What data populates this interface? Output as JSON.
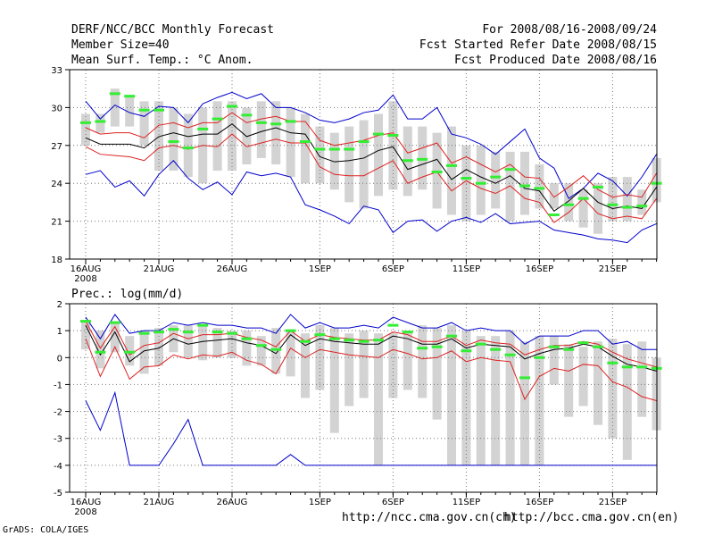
{
  "header": {
    "title": "DERF/NCC/BCC Monthly Forecast",
    "member_size": "Member Size=40",
    "variable": "Mean Surf. Temp.: °C Anom.",
    "period": "For 2008/08/16-2008/09/24",
    "started": "Fcst Started Refer Date 2008/08/15",
    "produced": "Fcst Produced Date 2008/08/16"
  },
  "footer": {
    "grads": "GrADS: COLA/IGES",
    "url_ncc": "http://ncc.cma.gov.cn(ch)",
    "url_bcc": "http://bcc.cma.gov.cn(en)"
  },
  "colors": {
    "box": "#d3d3d3",
    "member": "#33ee33",
    "mean": "#000000",
    "spread": "#dd2222",
    "extreme": "#0000cc",
    "grid": "#777777"
  },
  "chart_data": [
    {
      "type": "line",
      "title": "Mean Surf. Temp.: °C Anom.",
      "x_ticks": [
        "16AUG",
        "21AUG",
        "26AUG",
        "1SEP",
        "6SEP",
        "11SEP",
        "16SEP",
        "21SEP"
      ],
      "x_tick_days": [
        0,
        5,
        10,
        16,
        21,
        26,
        31,
        36
      ],
      "x_sublabel": "2008",
      "ylim": [
        18,
        33
      ],
      "y_ticks": [
        18,
        21,
        24,
        27,
        30,
        33
      ],
      "days": 40,
      "box_low": [
        27.0,
        28.0,
        28.5,
        28.5,
        27.0,
        25.0,
        25.0,
        24.5,
        24.0,
        25.0,
        25.0,
        25.5,
        26.0,
        25.5,
        24.5,
        24.0,
        24.0,
        23.5,
        22.5,
        22.0,
        23.0,
        23.5,
        23.0,
        23.5,
        22.0,
        21.5,
        21.0,
        21.5,
        22.0,
        21.0,
        21.5,
        22.0,
        22.0,
        21.0,
        20.5,
        20.0,
        21.0,
        21.0,
        21.5,
        22.5
      ],
      "box_high": [
        29.5,
        29.5,
        31.5,
        31.0,
        30.5,
        30.5,
        30.0,
        29.5,
        30.0,
        30.5,
        30.5,
        30.0,
        30.5,
        30.5,
        30.0,
        29.5,
        28.5,
        28.0,
        28.5,
        29.0,
        29.5,
        30.5,
        28.5,
        28.5,
        28.0,
        28.5,
        27.0,
        27.0,
        26.5,
        26.5,
        26.5,
        25.5,
        24.0,
        24.0,
        23.5,
        24.0,
        24.5,
        24.5,
        23.5,
        26.0
      ],
      "member_mark": [
        28.8,
        28.9,
        31.1,
        30.9,
        29.8,
        29.8,
        27.3,
        26.8,
        28.3,
        29.1,
        30.1,
        29.4,
        28.8,
        28.7,
        28.9,
        27.3,
        26.7,
        26.7,
        26.7,
        27.3,
        27.9,
        27.8,
        25.8,
        25.9,
        24.9,
        25.4,
        24.4,
        24.0,
        24.5,
        25.1,
        23.8,
        23.6,
        21.5,
        22.3,
        22.8,
        23.7,
        22.3,
        22.1,
        22.2,
        24.0
      ],
      "mean": [
        27.6,
        27.1,
        27.1,
        27.1,
        26.8,
        27.7,
        28.0,
        27.7,
        27.9,
        27.9,
        28.7,
        27.7,
        28.1,
        28.4,
        28.0,
        27.9,
        26.1,
        25.7,
        25.8,
        26.0,
        26.6,
        26.9,
        25.1,
        25.5,
        25.9,
        24.3,
        25.1,
        24.5,
        24.0,
        24.6,
        23.6,
        23.4,
        21.8,
        22.6,
        23.6,
        22.5,
        22.0,
        22.2,
        22.0,
        23.7
      ],
      "spread_upper": [
        28.4,
        27.9,
        28.0,
        28.0,
        27.6,
        28.6,
        28.8,
        28.4,
        28.8,
        28.8,
        29.6,
        28.8,
        29.1,
        29.3,
        28.9,
        28.9,
        27.4,
        27.0,
        27.2,
        27.4,
        27.8,
        28.0,
        26.4,
        26.8,
        27.2,
        25.6,
        26.1,
        25.5,
        24.9,
        25.5,
        24.5,
        24.4,
        22.9,
        23.7,
        24.6,
        23.5,
        22.9,
        23.1,
        22.9,
        24.8
      ],
      "spread_lower": [
        26.9,
        26.3,
        26.2,
        26.1,
        25.8,
        26.8,
        27.0,
        26.7,
        27.0,
        26.9,
        27.9,
        26.9,
        27.2,
        27.5,
        27.2,
        27.2,
        25.3,
        24.7,
        24.6,
        24.6,
        25.2,
        25.8,
        24.0,
        24.5,
        24.9,
        23.4,
        24.2,
        23.6,
        23.2,
        23.8,
        22.8,
        22.5,
        20.9,
        21.7,
        22.8,
        21.6,
        21.2,
        21.4,
        21.2,
        22.8
      ],
      "max": [
        30.5,
        29.1,
        30.2,
        29.6,
        29.3,
        30.1,
        30.0,
        28.8,
        30.3,
        30.8,
        31.2,
        30.7,
        31.1,
        30.0,
        30.0,
        29.6,
        29.0,
        28.8,
        29.1,
        29.6,
        29.8,
        31.0,
        29.1,
        29.1,
        30.0,
        27.9,
        27.6,
        27.1,
        26.3,
        27.3,
        28.3,
        26.0,
        25.2,
        22.8,
        23.6,
        24.8,
        24.2,
        23.0,
        24.5,
        26.3
      ],
      "min": [
        24.7,
        25.0,
        23.7,
        24.2,
        23.0,
        24.7,
        25.8,
        24.4,
        23.5,
        24.1,
        23.1,
        24.9,
        24.6,
        24.8,
        24.5,
        22.3,
        21.9,
        21.4,
        20.8,
        22.2,
        21.9,
        20.1,
        21.0,
        21.1,
        20.2,
        21.0,
        21.3,
        20.9,
        21.6,
        20.8,
        20.9,
        21.0,
        20.3,
        20.1,
        19.9,
        19.6,
        19.5,
        19.3,
        20.3,
        20.8
      ]
    },
    {
      "type": "line",
      "title": "Prec.: log(mm/d)",
      "x_ticks": [
        "16AUG",
        "21AUG",
        "26AUG",
        "1SEP",
        "6SEP",
        "11SEP",
        "16SEP",
        "21SEP"
      ],
      "x_tick_days": [
        0,
        5,
        10,
        16,
        21,
        26,
        31,
        36
      ],
      "x_sublabel": "2008",
      "ylim": [
        -5,
        2
      ],
      "y_ticks": [
        -5,
        -4,
        -3,
        -2,
        -1,
        0,
        1,
        2
      ],
      "days": 40,
      "box_low": [
        0.3,
        -0.4,
        0.2,
        -0.3,
        -0.6,
        -0.3,
        0.2,
        0.0,
        -0.1,
        0.0,
        0.0,
        -0.3,
        -0.3,
        -0.6,
        -0.7,
        -1.5,
        -1.2,
        -2.8,
        -1.8,
        -1.5,
        -4.0,
        -1.5,
        -1.2,
        -1.5,
        -2.3,
        -4.0,
        -4.0,
        -4.0,
        -4.0,
        -4.0,
        -4.0,
        -4.0,
        -1.0,
        -2.2,
        -1.8,
        -2.5,
        -3.0,
        -3.8,
        -2.2,
        -2.7
      ],
      "box_high": [
        1.4,
        1.0,
        1.3,
        0.8,
        1.0,
        1.1,
        1.2,
        1.2,
        1.2,
        1.1,
        1.0,
        1.0,
        0.8,
        1.1,
        1.0,
        0.9,
        1.2,
        1.1,
        0.9,
        1.0,
        0.9,
        0.9,
        1.0,
        1.2,
        1.1,
        1.2,
        1.0,
        0.8,
        0.8,
        1.0,
        0.6,
        0.8,
        0.8,
        0.5,
        0.4,
        0.6,
        0.7,
        0.5,
        0.6,
        0.0
      ],
      "member_mark": [
        1.35,
        0.2,
        1.3,
        0.2,
        0.9,
        0.95,
        1.05,
        0.95,
        1.2,
        0.95,
        0.9,
        0.7,
        0.45,
        0.3,
        1.0,
        0.6,
        0.85,
        0.7,
        0.65,
        0.6,
        0.65,
        1.2,
        0.95,
        0.35,
        0.4,
        0.8,
        0.25,
        0.5,
        0.3,
        0.1,
        -0.75,
        0.0,
        0.4,
        0.3,
        0.55,
        0.4,
        -0.2,
        -0.35,
        -0.35,
        -0.4
      ],
      "mean": [
        1.2,
        0.1,
        0.95,
        -0.15,
        0.25,
        0.35,
        0.7,
        0.5,
        0.6,
        0.65,
        0.7,
        0.55,
        0.45,
        0.15,
        0.85,
        0.45,
        0.7,
        0.6,
        0.55,
        0.5,
        0.5,
        0.8,
        0.7,
        0.5,
        0.5,
        0.7,
        0.35,
        0.5,
        0.45,
        0.4,
        -0.05,
        0.15,
        0.3,
        0.35,
        0.5,
        0.4,
        0.05,
        -0.25,
        -0.35,
        -0.5
      ],
      "spread_upper": [
        1.35,
        0.35,
        1.15,
        0.1,
        0.45,
        0.55,
        0.9,
        0.7,
        0.85,
        0.85,
        0.9,
        0.75,
        0.65,
        0.4,
        1.0,
        0.6,
        0.85,
        0.75,
        0.7,
        0.65,
        0.65,
        0.95,
        0.85,
        0.6,
        0.6,
        0.8,
        0.45,
        0.65,
        0.55,
        0.5,
        0.1,
        0.3,
        0.45,
        0.45,
        0.6,
        0.5,
        0.2,
        -0.05,
        -0.2,
        -0.35
      ],
      "spread_lower": [
        0.7,
        -0.7,
        0.4,
        -0.8,
        -0.35,
        -0.3,
        0.1,
        -0.05,
        0.1,
        0.05,
        0.2,
        -0.1,
        -0.25,
        -0.6,
        0.35,
        0.0,
        0.3,
        0.2,
        0.1,
        0.05,
        0.0,
        0.3,
        0.15,
        -0.05,
        0.0,
        0.25,
        -0.15,
        0.0,
        -0.1,
        -0.15,
        -1.55,
        -0.7,
        -0.4,
        -0.5,
        -0.25,
        -0.3,
        -0.9,
        -1.1,
        -1.45,
        -1.6
      ],
      "max": [
        1.5,
        0.7,
        1.6,
        0.9,
        1.0,
        1.0,
        1.3,
        1.2,
        1.3,
        1.2,
        1.2,
        1.1,
        1.1,
        0.9,
        1.6,
        1.1,
        1.3,
        1.1,
        1.1,
        1.2,
        1.1,
        1.5,
        1.3,
        1.1,
        1.1,
        1.3,
        1.0,
        1.1,
        1.0,
        1.0,
        0.5,
        0.8,
        0.8,
        0.8,
        1.0,
        1.0,
        0.5,
        0.6,
        0.3,
        0.3
      ],
      "min": [
        -1.6,
        -2.7,
        -1.3,
        -4.0,
        -4.0,
        -4.0,
        -3.2,
        -2.3,
        -4.0,
        -4.0,
        -4.0,
        -4.0,
        -4.0,
        -4.0,
        -3.6,
        -4.0,
        -4.0,
        -4.0,
        -4.0,
        -4.0,
        -4.0,
        -4.0,
        -4.0,
        -4.0,
        -4.0,
        -4.0,
        -4.0,
        -4.0,
        -4.0,
        -4.0,
        -4.0,
        -4.0,
        -4.0,
        -4.0,
        -4.0,
        -4.0,
        -4.0,
        -4.0,
        -4.0,
        -4.0
      ]
    }
  ]
}
